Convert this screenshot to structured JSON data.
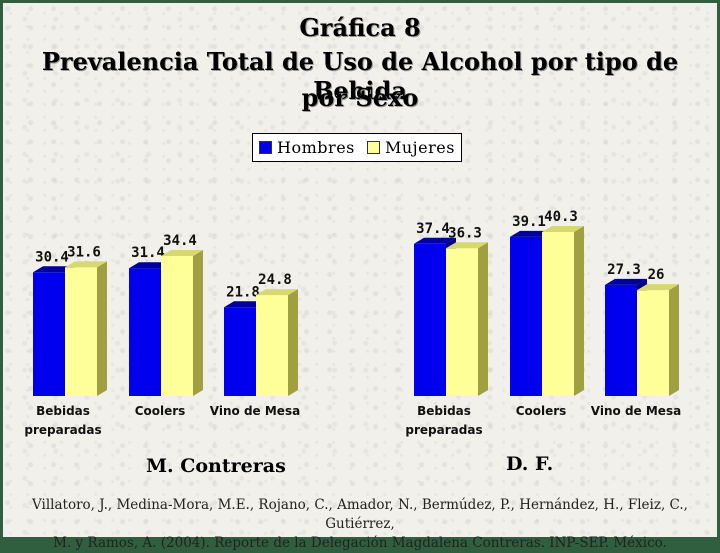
{
  "title_lines": [
    "Gráfica 8",
    "Prevalencia Total de Uso de Alcohol por tipo de Bebida",
    "por Sexo"
  ],
  "legend": {
    "items": [
      {
        "label": "Hombres",
        "color": "#0000ee"
      },
      {
        "label": "Mujeres",
        "color": "#ffff99"
      }
    ]
  },
  "chart_data": [
    {
      "type": "bar",
      "title": "M. Contreras",
      "categories": [
        "Bebidas preparadas",
        "Coolers",
        "Vino de Mesa"
      ],
      "series": [
        {
          "name": "Hombres",
          "values": [
            30.4,
            31.4,
            21.8
          ]
        },
        {
          "name": "Mujeres",
          "values": [
            31.6,
            34.4,
            24.8
          ]
        }
      ],
      "ylim": [
        0,
        40.3
      ],
      "grid": false,
      "legend_position": "top-center"
    },
    {
      "type": "bar",
      "title": "D. F.",
      "categories": [
        "Bebidas preparadas",
        "Coolers",
        "Vino de Mesa"
      ],
      "series": [
        {
          "name": "Hombres",
          "values": [
            37.4,
            39.1,
            27.3
          ]
        },
        {
          "name": "Mujeres",
          "values": [
            36.3,
            40.3,
            26
          ]
        }
      ],
      "ylim": [
        0,
        40.3
      ],
      "grid": false,
      "legend_position": "top-center"
    }
  ],
  "colors": {
    "hombres_front": "#0000ee",
    "hombres_top": "#0000a0",
    "hombres_side": "#000080",
    "mujeres_front": "#ffff99",
    "mujeres_top": "#d8d870",
    "mujeres_side": "#a0a040",
    "frame": "#2f5f3f",
    "background": "#f1f0ea"
  },
  "citation_lines": [
    "Villatoro, J., Medina-Mora, M.E., Rojano, C., Amador, N., Bermúdez, P., Hernández, H., Fleiz, C., Gutiérrez,",
    "M. y Ramos, A. (2004). Reporte de la Delegación Magdalena Contreras. INP-SEP. México."
  ]
}
